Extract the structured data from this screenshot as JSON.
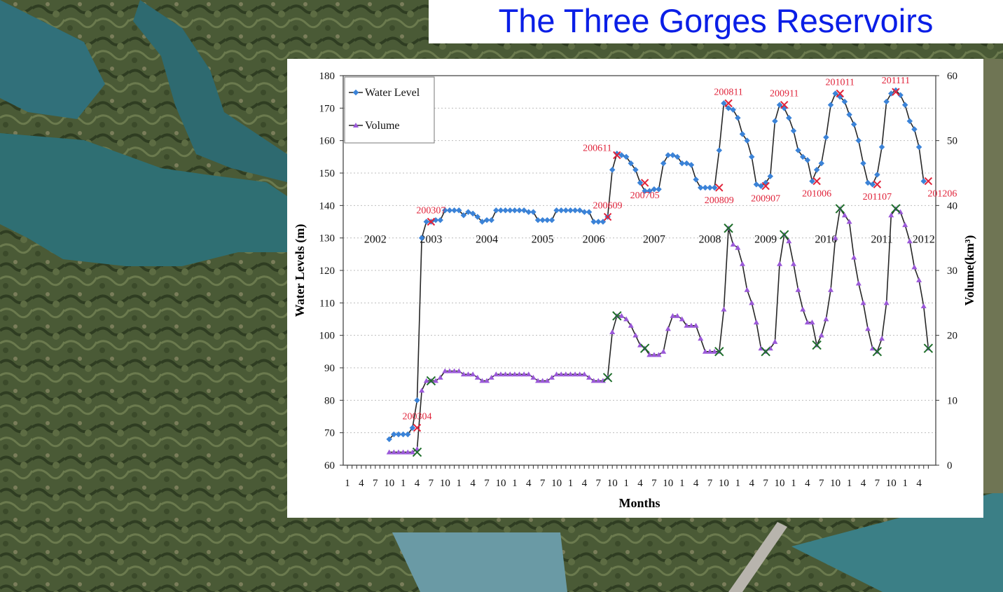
{
  "title": "The Three Gorges Reservoirs",
  "colors": {
    "title": "#0a1ee6",
    "water_level": "#3b83d8",
    "volume": "#9b59d9",
    "line": "#262626",
    "peak_marker": "#e0233a",
    "volume_marker": "#1e6e2a",
    "label": "#e0233a"
  },
  "chart_data": {
    "type": "line",
    "xlabel": "Months",
    "ylabel_left": "Water Levels (m)",
    "ylabel_right": "Volume(km³)",
    "ylim_left": [
      60,
      180
    ],
    "ylim_right": [
      0,
      60
    ],
    "yticks_left": [
      "60",
      "70",
      "80",
      "90",
      "100",
      "110",
      "120",
      "130",
      "140",
      "150",
      "160",
      "170",
      "180"
    ],
    "yticks_right": [
      "0",
      "10",
      "20",
      "30",
      "40",
      "50",
      "60"
    ],
    "x_tick_labels": [
      "1",
      "4",
      "7",
      "10",
      "1",
      "4",
      "7",
      "10",
      "1",
      "4",
      "7",
      "10",
      "1",
      "4",
      "7",
      "10",
      "1",
      "4",
      "7",
      "10",
      "1",
      "4",
      "7",
      "10",
      "1",
      "4",
      "7",
      "10",
      "1",
      "4",
      "7",
      "10",
      "1",
      "4",
      "7",
      "10",
      "1",
      "4",
      "7",
      "10",
      "1",
      "4"
    ],
    "grid": "horizontal dotted",
    "legend": {
      "placement": "top-left",
      "entries": [
        "Water Level",
        "Volume"
      ]
    },
    "year_labels": [
      {
        "text": "2002",
        "month": 7
      },
      {
        "text": "2003",
        "month": 19
      },
      {
        "text": "2004",
        "month": 31
      },
      {
        "text": "2005",
        "month": 43
      },
      {
        "text": "2006",
        "month": 54
      },
      {
        "text": "2007",
        "month": 67
      },
      {
        "text": "2008",
        "month": 79
      },
      {
        "text": "2009",
        "month": 91
      },
      {
        "text": "2010",
        "month": 104
      },
      {
        "text": "2011",
        "month": 116
      },
      {
        "text": "2012",
        "month": 125
      }
    ],
    "series": [
      {
        "name": "Water Level",
        "axis": "left",
        "start_month": 10,
        "values": [
          68,
          69.5,
          69.5,
          69.5,
          69.5,
          71.5,
          80,
          130,
          135,
          135,
          135.5,
          135.5,
          138.5,
          138.5,
          138.5,
          138.5,
          137,
          138,
          137.5,
          136.5,
          135,
          135.5,
          135.5,
          138.5,
          138.5,
          138.5,
          138.5,
          138.5,
          138.5,
          138.5,
          138,
          138,
          135.5,
          135.5,
          135.5,
          135.5,
          138.5,
          138.5,
          138.5,
          138.5,
          138.5,
          138.5,
          138,
          138,
          135,
          135,
          135,
          136.5,
          151,
          156,
          155.5,
          155,
          153,
          151,
          147,
          144.5,
          144.5,
          145,
          145,
          153,
          155.5,
          155.5,
          155,
          153,
          153,
          152.5,
          148,
          145.5,
          145.5,
          145.5,
          145.5,
          157,
          171.5,
          170,
          169.5,
          167,
          162,
          160,
          155,
          146.5,
          146,
          147,
          149,
          166,
          171,
          170,
          167,
          163,
          157,
          155,
          154,
          147.5,
          151,
          153,
          161,
          171,
          174.5,
          173.5,
          172,
          168,
          165,
          160,
          153,
          147,
          146.5,
          149.5,
          158,
          172,
          174.5,
          175.5,
          174,
          171,
          166,
          163.5,
          158,
          147.5
        ]
      },
      {
        "name": "Volume",
        "axis": "right",
        "start_month": 10,
        "values": [
          2,
          2,
          2,
          2,
          2,
          2,
          2.5,
          11.5,
          13,
          13,
          13,
          13.5,
          14.5,
          14.5,
          14.5,
          14.5,
          14,
          14,
          14,
          13.5,
          13,
          13,
          13.5,
          14,
          14,
          14,
          14,
          14,
          14,
          14,
          14,
          13.5,
          13,
          13,
          13,
          13.5,
          14,
          14,
          14,
          14,
          14,
          14,
          14,
          13.5,
          13,
          13,
          13,
          13.5,
          20.5,
          23,
          23,
          22.5,
          21.5,
          20,
          18.5,
          18,
          17,
          17,
          17,
          17.5,
          21,
          23,
          23,
          22.5,
          21.5,
          21.5,
          21.5,
          19.5,
          17.5,
          17.5,
          17.5,
          17.5,
          24,
          36.5,
          34,
          33.5,
          31,
          27,
          25,
          22,
          18,
          17.5,
          18,
          19,
          31,
          35.5,
          34.5,
          31,
          27,
          24,
          22,
          22,
          18.5,
          20,
          22.5,
          27,
          35,
          39.5,
          38.5,
          37.5,
          32,
          28,
          25,
          21,
          18,
          17.5,
          19.5,
          25,
          38.5,
          39.5,
          39,
          37,
          34.5,
          30.5,
          28.5,
          24.5,
          18
        ]
      }
    ],
    "peak_annotations": [
      {
        "label": "200304",
        "month": 16,
        "value": 71.5
      },
      {
        "label": "200307",
        "month": 19,
        "value": 135
      },
      {
        "label": "200609",
        "month": 57,
        "value": 136.5
      },
      {
        "label": "200611",
        "month": 59,
        "value": 155.5
      },
      {
        "label": "200705",
        "month": 65,
        "value": 147
      },
      {
        "label": "200809",
        "month": 81,
        "value": 145.5
      },
      {
        "label": "200811",
        "month": 83,
        "value": 171.5
      },
      {
        "label": "200907",
        "month": 91,
        "value": 146
      },
      {
        "label": "200911",
        "month": 95,
        "value": 171
      },
      {
        "label": "201006",
        "month": 102,
        "value": 147.5
      },
      {
        "label": "201011",
        "month": 107,
        "value": 174.5
      },
      {
        "label": "201107",
        "month": 115,
        "value": 146.5
      },
      {
        "label": "201111",
        "month": 119,
        "value": 175
      },
      {
        "label": "201206",
        "month": 126,
        "value": 147.5
      }
    ]
  }
}
